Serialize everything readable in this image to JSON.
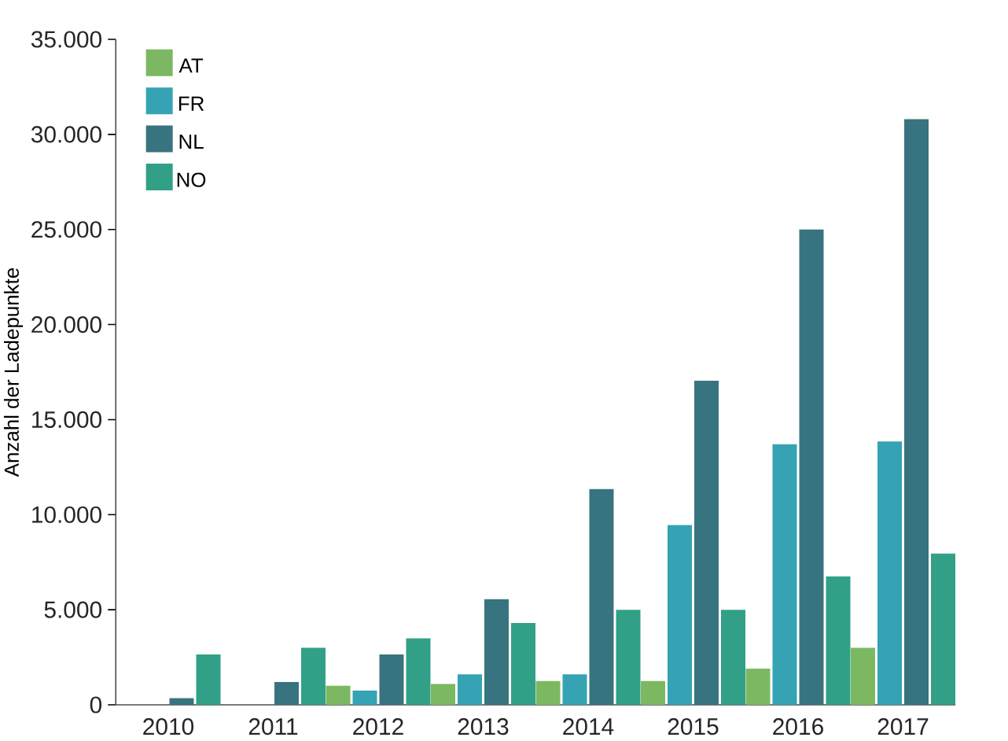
{
  "chart_data": {
    "type": "bar",
    "ylabel": "Anzahl der Ladepunkte",
    "categories": [
      "2010",
      "2011",
      "2012",
      "2013",
      "2014",
      "2015",
      "2016",
      "2017"
    ],
    "series": [
      {
        "name": "AT",
        "color": "#7cb862",
        "values": [
          0,
          0,
          1000,
          1100,
          1250,
          1250,
          1900,
          3000
        ]
      },
      {
        "name": "FR",
        "color": "#35a3b3",
        "values": [
          0,
          0,
          750,
          1600,
          1600,
          9450,
          13700,
          13850
        ]
      },
      {
        "name": "NL",
        "color": "#38747f",
        "values": [
          350,
          1200,
          2650,
          5550,
          11350,
          17050,
          25000,
          30800
        ]
      },
      {
        "name": "NO",
        "color": "#31a087",
        "values": [
          2650,
          3000,
          3500,
          4300,
          5000,
          5000,
          6750,
          7950
        ]
      }
    ],
    "ylim": [
      0,
      35000
    ],
    "yticks": [
      {
        "value": 0,
        "label": "0"
      },
      {
        "value": 5000,
        "label": "5.000"
      },
      {
        "value": 10000,
        "label": "10.000"
      },
      {
        "value": 15000,
        "label": "15.000"
      },
      {
        "value": 20000,
        "label": "20.000"
      },
      {
        "value": 25000,
        "label": "25.000"
      },
      {
        "value": 30000,
        "label": "30.000"
      },
      {
        "value": 35000,
        "label": "35.000"
      }
    ],
    "grid": false,
    "legend": "top left"
  }
}
